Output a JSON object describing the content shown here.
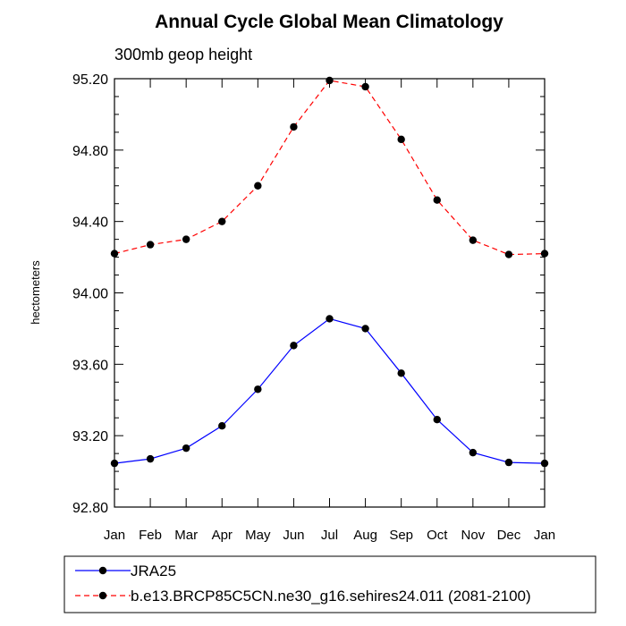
{
  "chart_data": {
    "type": "line",
    "title": "Annual Cycle Global Mean Climatology",
    "subtitle": "300mb geop height",
    "xlabel": "",
    "ylabel": "hectometers",
    "categories": [
      "Jan",
      "Feb",
      "Mar",
      "Apr",
      "May",
      "Jun",
      "Jul",
      "Aug",
      "Sep",
      "Oct",
      "Nov",
      "Dec",
      "Jan"
    ],
    "ylim": [
      92.8,
      95.2
    ],
    "yticks": [
      "92.80",
      "93.20",
      "93.60",
      "94.00",
      "94.40",
      "94.80",
      "95.20"
    ],
    "grid": false,
    "legend_position": "bottom",
    "series": [
      {
        "name": "JRA25",
        "color": "#0000ff",
        "dash": "solid",
        "values": [
          93.045,
          93.07,
          93.13,
          93.255,
          93.46,
          93.705,
          93.855,
          93.8,
          93.55,
          93.29,
          93.105,
          93.05,
          93.045
        ]
      },
      {
        "name": "b.e13.BRCP85C5CN.ne30_g16.sehires24.011 (2081-2100)",
        "color": "#ff0000",
        "dash": "dashed",
        "values": [
          94.22,
          94.27,
          94.3,
          94.4,
          94.6,
          94.93,
          95.19,
          95.155,
          94.86,
          94.52,
          94.295,
          94.215,
          94.22
        ]
      }
    ]
  }
}
